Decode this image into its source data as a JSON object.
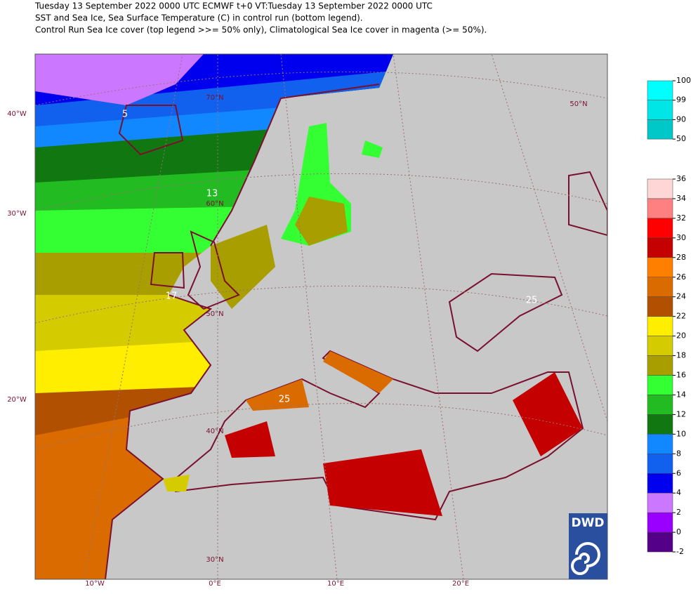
{
  "header": {
    "lines": [
      "Tuesday 13 September 2022 0000 UTC  ECMWF  t+0  VT:Tuesday 13 September 2022 0000 UTC",
      "SST and Sea Ice, Sea Surface Temperature (C) in control run (bottom legend).",
      "Control Run Sea Ice cover (top legend >>= 50% only), Climatological Sea Ice cover in magenta (>= 50%)."
    ]
  },
  "map": {
    "lat_labels": [
      "70°N",
      "60°N",
      "50°N",
      "40°N",
      "30°N",
      "50°N"
    ],
    "lon_labels_left": [
      "40°W",
      "30°W",
      "20°W"
    ],
    "lon_labels_bottom": [
      "10°W",
      "0°E",
      "10°E",
      "20°E"
    ],
    "contour_labels": [
      "5",
      "13",
      "17",
      "25",
      "25"
    ],
    "logo": "DWD"
  },
  "ice_legend": {
    "ticks": [
      100,
      99,
      90,
      50
    ],
    "colors": [
      "#00ffff",
      "#00e6e6",
      "#00c8c8"
    ]
  },
  "sst_legend": {
    "ticks": [
      36,
      34,
      32,
      30,
      28,
      26,
      24,
      22,
      20,
      18,
      16,
      14,
      12,
      10,
      8,
      6,
      4,
      2,
      0,
      -2
    ],
    "colors": [
      "#ffd6d6",
      "#ff8080",
      "#ff0000",
      "#c40000",
      "#ff8000",
      "#d96b00",
      "#b05000",
      "#ffee00",
      "#d4cc00",
      "#a89e00",
      "#33ff33",
      "#22bb22",
      "#117711",
      "#1188ff",
      "#1160ee",
      "#0000ee",
      "#cc77ff",
      "#9900ff",
      "#550088"
    ]
  }
}
